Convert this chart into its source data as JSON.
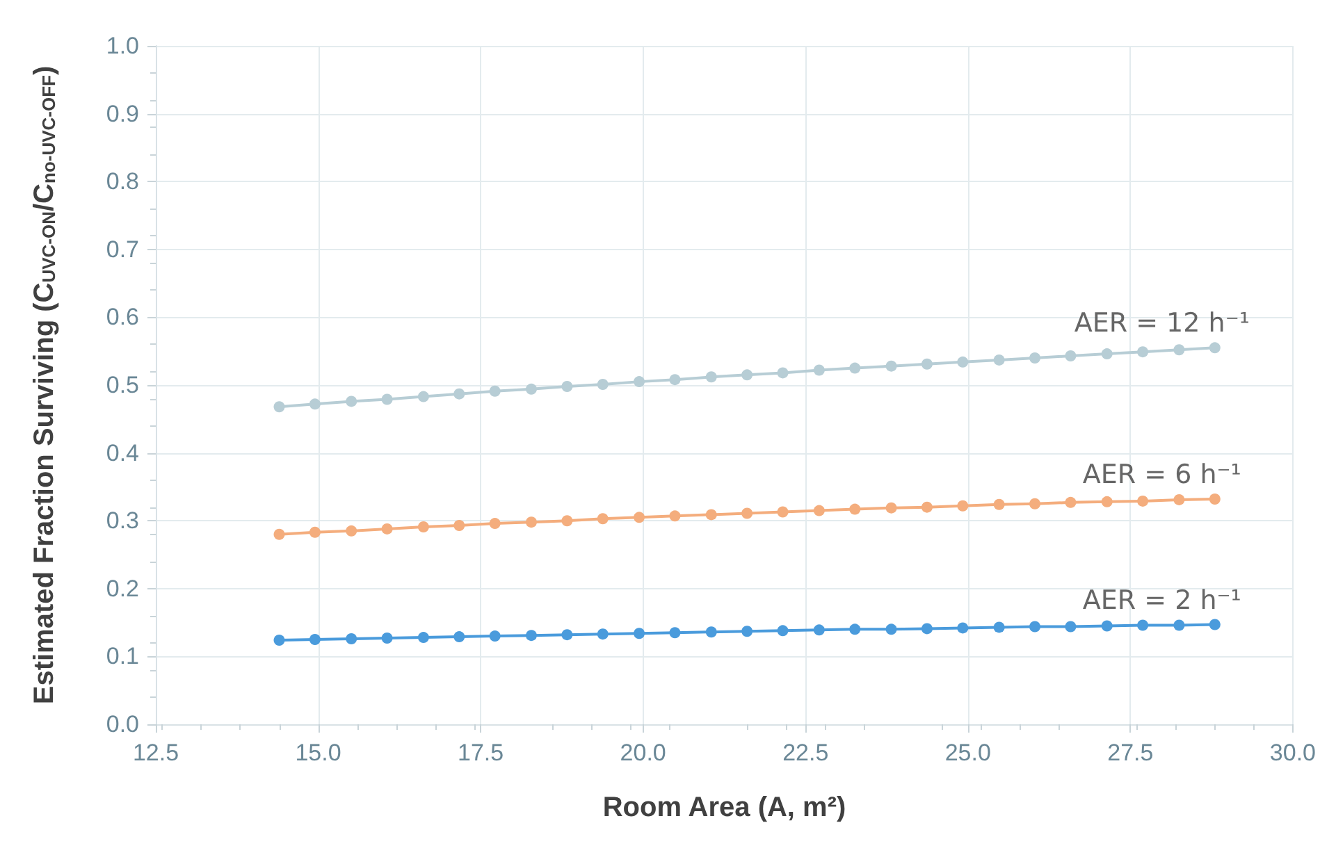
{
  "chart_data": {
    "type": "line",
    "xlabel": "Room Area (A, m²)",
    "ylabel": "Estimated Fraction Surviving (C$_{UVC-ON}$/C$_{no-UVC-OFF}$)",
    "x": [
      14.4,
      14.95,
      15.51,
      16.06,
      16.62,
      17.17,
      17.72,
      18.28,
      18.83,
      19.38,
      19.94,
      20.49,
      21.05,
      21.6,
      22.15,
      22.71,
      23.26,
      23.82,
      24.37,
      24.92,
      25.48,
      26.03,
      26.58,
      27.14,
      27.69,
      28.25,
      28.8
    ],
    "series": [
      {
        "color": "#b7cdd5",
        "values": [
          0.468,
          0.472,
          0.476,
          0.479,
          0.483,
          0.487,
          0.491,
          0.494,
          0.498,
          0.501,
          0.505,
          0.508,
          0.512,
          0.515,
          0.518,
          0.522,
          0.525,
          0.528,
          0.531,
          0.534,
          0.537,
          0.54,
          0.543,
          0.546,
          0.549,
          0.552,
          0.555
        ]
      },
      {
        "color": "#f4ad7d",
        "values": [
          0.28,
          0.283,
          0.285,
          0.288,
          0.291,
          0.293,
          0.296,
          0.298,
          0.3,
          0.303,
          0.305,
          0.307,
          0.309,
          0.311,
          0.313,
          0.315,
          0.317,
          0.319,
          0.32,
          0.322,
          0.324,
          0.325,
          0.327,
          0.328,
          0.329,
          0.331,
          0.332
        ]
      },
      {
        "color": "#4a9bdc",
        "values": [
          0.124,
          0.125,
          0.126,
          0.127,
          0.128,
          0.129,
          0.13,
          0.131,
          0.132,
          0.133,
          0.134,
          0.135,
          0.136,
          0.137,
          0.138,
          0.139,
          0.14,
          0.14,
          0.141,
          0.142,
          0.143,
          0.144,
          0.144,
          0.145,
          0.146,
          0.146,
          0.147
        ]
      }
    ],
    "annotations": [
      "AER = 12 h⁻¹",
      "AER = 6 h⁻¹",
      "AER = 2 h⁻¹"
    ],
    "xlim": [
      12.5,
      30
    ],
    "xticks": [
      12.5,
      {
        "value": 15,
        "label": "15.0"
      },
      17.5,
      {
        "value": 20,
        "label": "20.0"
      },
      22.5,
      {
        "value": 25,
        "label": "25.0"
      },
      27.5,
      {
        "value": 30,
        "label": "30.0"
      }
    ],
    "ylim": [
      0,
      1
    ],
    "yticks": [
      {
        "value": 0,
        "label": "0.0"
      },
      0.1,
      0.2,
      0.3,
      0.4,
      0.5,
      0.6,
      0.7,
      0.8,
      0.9,
      {
        "value": 1,
        "label": "1.0"
      }
    ],
    "grid": true,
    "marker": "circle",
    "line_style": "solid"
  }
}
